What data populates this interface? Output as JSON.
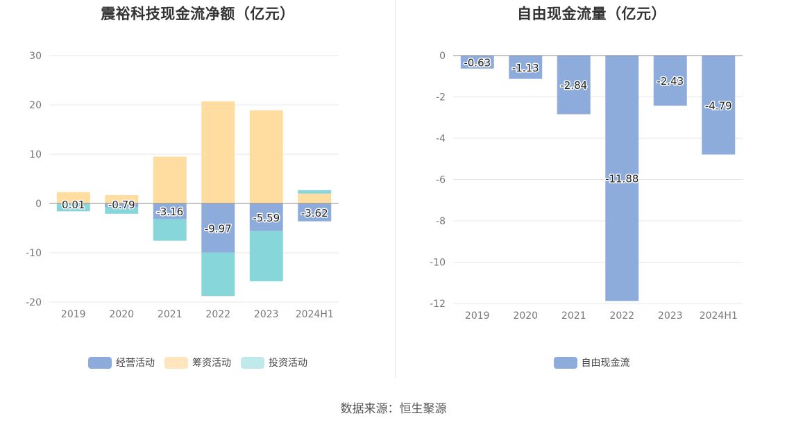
{
  "charts": {
    "left": {
      "title": "震裕科技现金流净额（亿元）"
    },
    "right": {
      "title": "自由现金流量（亿元）"
    }
  },
  "source": "数据来源：恒生聚源",
  "chart_data": [
    {
      "type": "bar",
      "stacked": true,
      "title": "震裕科技现金流净额（亿元）",
      "categories": [
        "2019",
        "2020",
        "2021",
        "2022",
        "2023",
        "2024H1"
      ],
      "ylim": [
        -20,
        30
      ],
      "yticks": [
        -20,
        -10,
        0,
        10,
        20,
        30
      ],
      "grid": true,
      "legend_position": "bottom",
      "series": [
        {
          "name": "经营活动",
          "color": "#8eacdb",
          "values": [
            0.01,
            -0.79,
            -3.16,
            -9.97,
            -5.59,
            -3.62
          ],
          "labels": [
            "0.01",
            "-0.79",
            "-3.16",
            "-9.97",
            "-5.59",
            "-3.62"
          ]
        },
        {
          "name": "筹资活动",
          "color": "#ffdca0",
          "values": [
            2.3,
            1.7,
            9.5,
            20.7,
            18.9,
            2.0
          ]
        },
        {
          "name": "投资活动",
          "color": "#87d6d9",
          "values": [
            -1.6,
            -1.3,
            -4.4,
            -8.8,
            -10.2,
            0.7
          ]
        }
      ],
      "legend": [
        {
          "name": "经营活动",
          "color": "#8eacdb"
        },
        {
          "name": "筹资活动",
          "color": "#ffe5bd"
        },
        {
          "name": "投资活动",
          "color": "#bfe9ea"
        }
      ]
    },
    {
      "type": "bar",
      "title": "自由现金流量（亿元）",
      "categories": [
        "2019",
        "2020",
        "2021",
        "2022",
        "2023",
        "2024H1"
      ],
      "ylim": [
        -12,
        0
      ],
      "yticks": [
        -12,
        -10,
        -8,
        -6,
        -4,
        -2,
        0
      ],
      "grid": true,
      "legend_position": "bottom",
      "series": [
        {
          "name": "自由现金流",
          "color": "#8eacdb",
          "values": [
            -0.63,
            -1.13,
            -2.84,
            -11.88,
            -2.43,
            -4.79
          ],
          "labels": [
            "-0.63",
            "-1.13",
            "-2.84",
            "-11.88",
            "-2.43",
            "-4.79"
          ]
        }
      ],
      "legend": [
        {
          "name": "自由现金流",
          "color": "#8eacdb"
        }
      ]
    }
  ]
}
